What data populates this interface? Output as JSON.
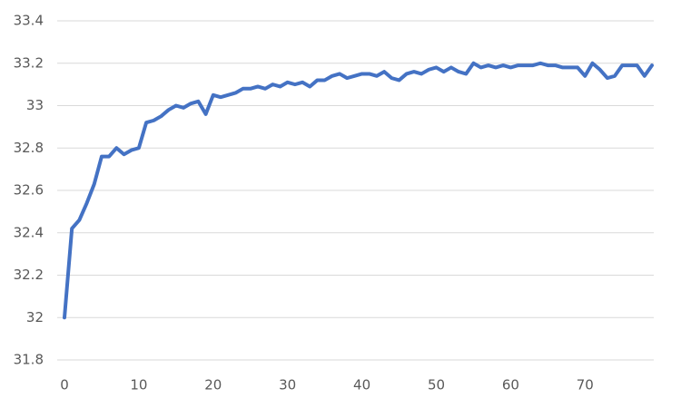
{
  "chart_data": {
    "type": "line",
    "color": "#4472c4",
    "grid": true,
    "x": [
      0,
      1,
      2,
      3,
      4,
      5,
      6,
      7,
      8,
      9,
      10,
      11,
      12,
      13,
      14,
      15,
      16,
      17,
      18,
      19,
      20,
      21,
      22,
      23,
      24,
      25,
      26,
      27,
      28,
      29,
      30,
      31,
      32,
      33,
      34,
      35,
      36,
      37,
      38,
      39,
      40,
      41,
      42,
      43,
      44,
      45,
      46,
      47,
      48,
      49,
      50,
      51,
      52,
      53,
      54,
      55,
      56,
      57,
      58,
      59,
      60,
      61,
      62,
      63,
      64,
      65,
      66,
      67,
      68,
      69,
      70,
      71,
      72,
      73,
      74,
      75,
      76,
      77,
      78,
      79
    ],
    "values": [
      32.0,
      32.42,
      32.46,
      32.54,
      32.63,
      32.76,
      32.76,
      32.8,
      32.77,
      32.79,
      32.8,
      32.92,
      32.93,
      32.95,
      32.98,
      33.0,
      32.99,
      33.01,
      33.02,
      32.96,
      33.05,
      33.04,
      33.05,
      33.06,
      33.08,
      33.08,
      33.09,
      33.08,
      33.1,
      33.09,
      33.11,
      33.1,
      33.11,
      33.09,
      33.12,
      33.12,
      33.14,
      33.15,
      33.13,
      33.14,
      33.15,
      33.15,
      33.14,
      33.16,
      33.13,
      33.12,
      33.15,
      33.16,
      33.15,
      33.17,
      33.18,
      33.16,
      33.18,
      33.16,
      33.15,
      33.2,
      33.18,
      33.19,
      33.18,
      33.19,
      33.18,
      33.19,
      33.19,
      33.19,
      33.2,
      33.19,
      33.19,
      33.18,
      33.18,
      33.18,
      33.14,
      33.2,
      33.17,
      33.13,
      33.14,
      33.19,
      33.19,
      33.19,
      33.14,
      33.19
    ],
    "xlim": [
      0,
      79
    ],
    "xticks": [
      0,
      10,
      20,
      30,
      40,
      50,
      60,
      70
    ],
    "ylim": [
      31.8,
      33.4
    ],
    "yticks": [
      31.8,
      32,
      32.2,
      32.4,
      32.6,
      32.8,
      33,
      33.2,
      33.4
    ]
  }
}
